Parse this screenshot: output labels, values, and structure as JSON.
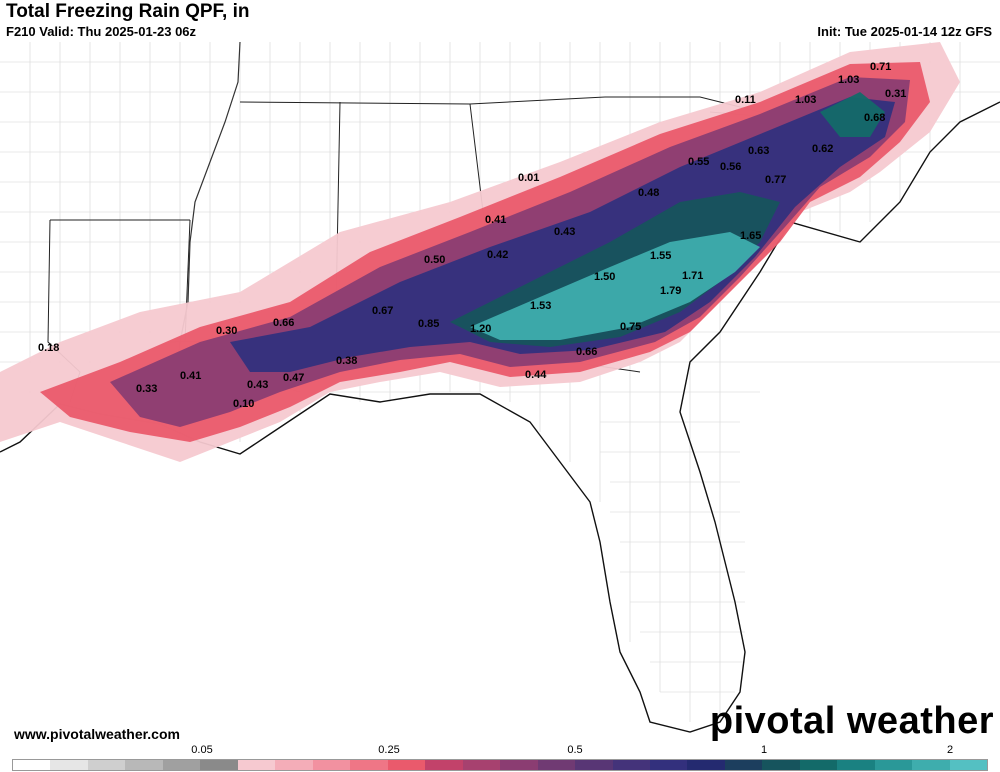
{
  "header": {
    "title": "Total Freezing Rain QPF, in",
    "valid": "F210 Valid: Thu 2025-01-23 06z",
    "init": "Init: Tue 2025-01-14 12z GFS"
  },
  "footer": {
    "website": "www.pivotalweather.com",
    "brand": "pivotal weather"
  },
  "legend": {
    "ticks": [
      "0.05",
      "0.25",
      "0.5",
      "1",
      "2"
    ],
    "colors": [
      "#ffffff",
      "#e6e6e6",
      "#cfcfcf",
      "#b8b8b8",
      "#a0a0a0",
      "#8a8a8a",
      "#f6c9d0",
      "#f4adb8",
      "#f291a0",
      "#ef7686",
      "#ea5a6c",
      "#c2426a",
      "#a7416f",
      "#8b3d72",
      "#703a73",
      "#583675",
      "#44337a",
      "#33307d",
      "#242a70",
      "#1c3e5e",
      "#16545d",
      "#136a69",
      "#1a8181",
      "#2a9898",
      "#3eadad",
      "#54c0c2"
    ]
  },
  "map": {
    "values": [
      "0.71",
      "1.03",
      "1.03",
      "0.11",
      "0.31",
      "0.68",
      "0.62",
      "0.63",
      "0.55",
      "0.56",
      "0.77",
      "0.48",
      "0.01",
      "0.41",
      "0.43",
      "1.65",
      "1.55",
      "1.71",
      "1.50",
      "1.79",
      "1.53",
      "0.50",
      "0.42",
      "0.67",
      "0.85",
      "1.20",
      "0.75",
      "0.66",
      "0.30",
      "0.66",
      "0.18",
      "0.41",
      "0.33",
      "0.43",
      "0.47",
      "0.38",
      "0.10",
      "0.44"
    ]
  }
}
